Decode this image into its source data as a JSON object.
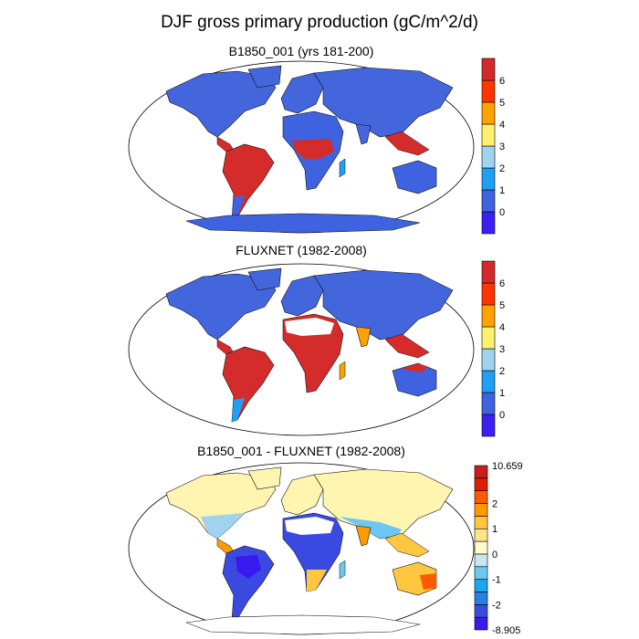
{
  "title": "DJF gross primary production (gC/m^2/d)",
  "panels": [
    {
      "title": "B1850_001 (yrs 181-200)",
      "scale": "absolute"
    },
    {
      "title": "FLUXNET (1982-2008)",
      "scale": "absolute"
    },
    {
      "title": "B1850_001 - FLUXNET (1982-2008)",
      "scale": "difference"
    }
  ],
  "colorbar_abs": {
    "colors": [
      "#3d1ff2",
      "#3f63e0",
      "#1ea0f5",
      "#9fd3ef",
      "#fff06e",
      "#ffa200",
      "#ff3500",
      "#d22a2a"
    ],
    "labels": [
      "0",
      "1",
      "2",
      "3",
      "4",
      "5",
      "6"
    ]
  },
  "colorbar_diff": {
    "colors": [
      "#3a18f0",
      "#3a4ae0",
      "#2a7ee8",
      "#18a8f2",
      "#6cc8f2",
      "#c6e6f2",
      "#fffbcc",
      "#ffe48a",
      "#ffc640",
      "#ff9a00",
      "#ff5a00",
      "#e01e00",
      "#c81e1e"
    ],
    "labels": [
      "-8.905",
      "-2",
      "-1",
      "0",
      "1",
      "2",
      "10.659"
    ]
  },
  "colors": {
    "ocean": "#ffffff",
    "frame": "#000000"
  }
}
